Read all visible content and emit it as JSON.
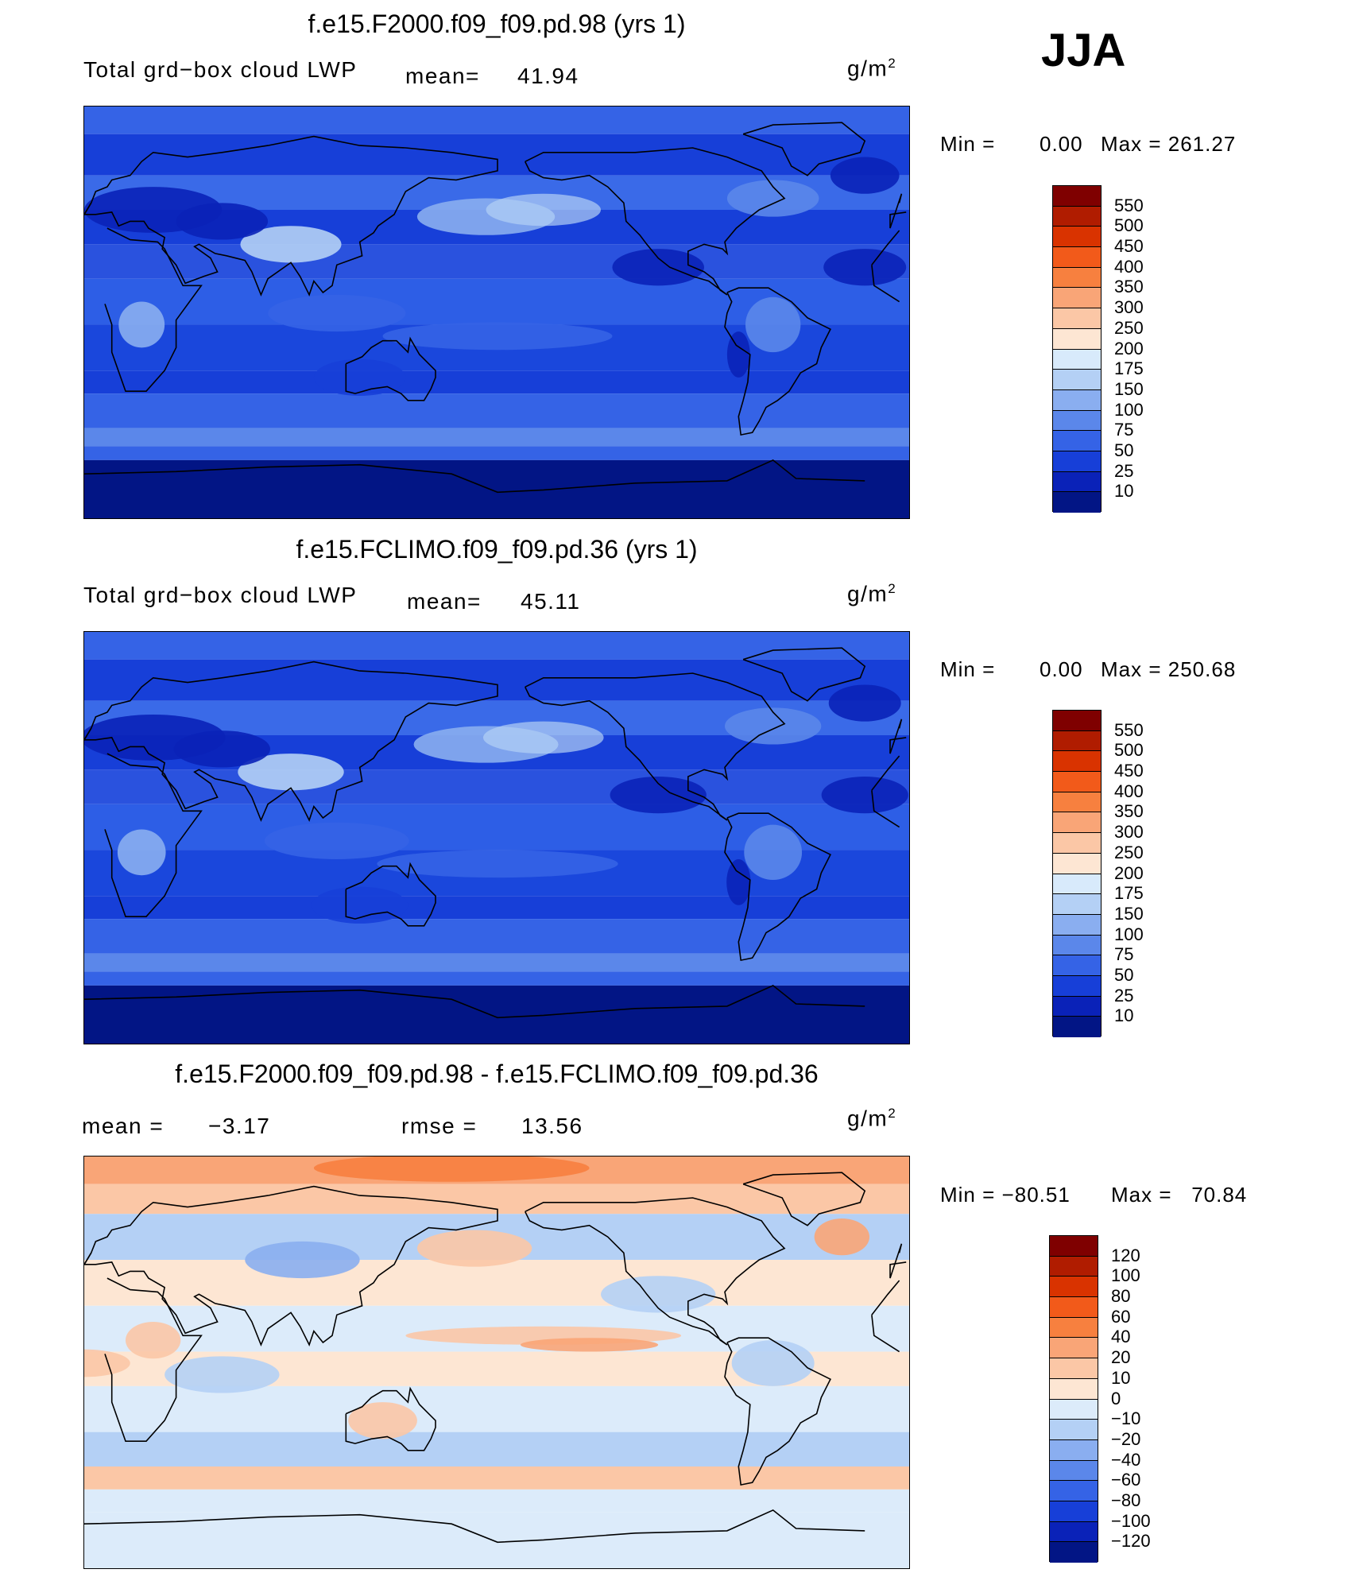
{
  "season": "JJA",
  "panels": [
    {
      "id": "top",
      "title": "f.e15.F2000.f09_f09.pd.98 (yrs 1)",
      "left_label": "Total grd−box cloud LWP",
      "mean_label": "mean=",
      "mean_value": "41.94",
      "units": "g/m",
      "units_sup": "2",
      "min_text": "Min =",
      "min_value": "0.00",
      "max_text": "Max =",
      "max_value": "261.27",
      "palette": "abs",
      "colorbar_labels": [
        "550",
        "500",
        "450",
        "400",
        "350",
        "300",
        "250",
        "200",
        "175",
        "150",
        "100",
        "75",
        "50",
        "25",
        "10"
      ]
    },
    {
      "id": "mid",
      "title": "f.e15.FCLIMO.f09_f09.pd.36 (yrs 1)",
      "left_label": "Total grd−box cloud LWP",
      "mean_label": "mean=",
      "mean_value": "45.11",
      "units": "g/m",
      "units_sup": "2",
      "min_text": "Min =",
      "min_value": "0.00",
      "max_text": "Max =",
      "max_value": "250.68",
      "palette": "abs",
      "colorbar_labels": [
        "550",
        "500",
        "450",
        "400",
        "350",
        "300",
        "250",
        "200",
        "175",
        "150",
        "100",
        "75",
        "50",
        "25",
        "10"
      ]
    },
    {
      "id": "diff",
      "title": "f.e15.F2000.f09_f09.pd.98 - f.e15.FCLIMO.f09_f09.pd.36",
      "mean_label": "mean =",
      "mean_value": "−3.17",
      "rmse_label": "rmse =",
      "rmse_value": "13.56",
      "units": "g/m",
      "units_sup": "2",
      "min_text": "Min =",
      "min_value": "−80.51",
      "max_text": "Max =",
      "max_value": "70.84",
      "palette": "diff",
      "colorbar_labels": [
        "120",
        "100",
        "80",
        "60",
        "40",
        "20",
        "10",
        "0",
        "−10",
        "−20",
        "−40",
        "−60",
        "−80",
        "−100",
        "−120"
      ]
    }
  ],
  "colors": {
    "abs": [
      "#7f0000",
      "#b01c00",
      "#d93300",
      "#f25a1a",
      "#f7803f",
      "#f9a577",
      "#fbc7a6",
      "#fde6d3",
      "#d8eafb",
      "#b4d0f5",
      "#8aaef0",
      "#5b87ea",
      "#3563e6",
      "#173fd8",
      "#0a22b8",
      "#021585"
    ],
    "diff": [
      "#7f0000",
      "#b01c00",
      "#d93300",
      "#f25a1a",
      "#f7803f",
      "#f9a577",
      "#fbc7a6",
      "#fde6d3",
      "#dcebfa",
      "#b4d0f5",
      "#8aaef0",
      "#5b87ea",
      "#3563e6",
      "#173fd8",
      "#0a22b8",
      "#021585"
    ]
  }
}
